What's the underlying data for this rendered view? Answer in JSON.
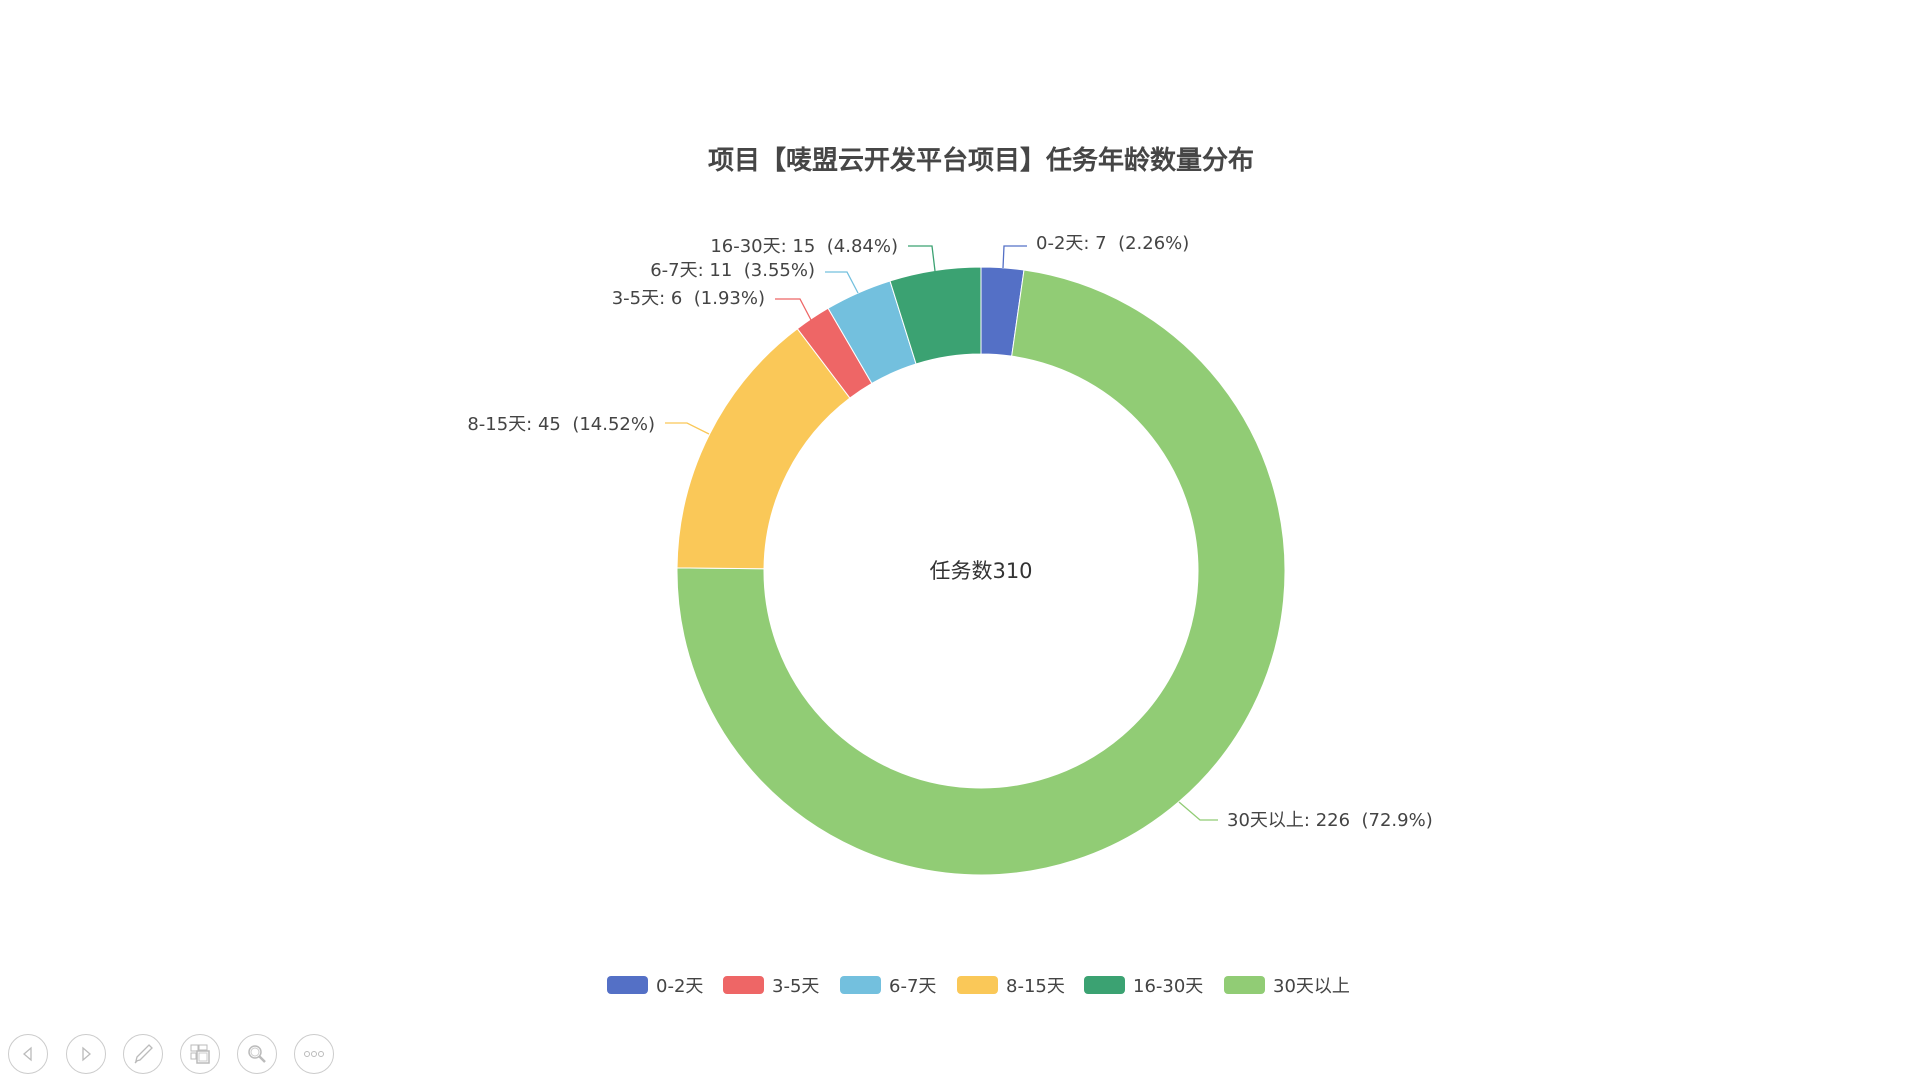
{
  "chart_data": {
    "type": "pie",
    "variant": "donut",
    "title": "项目【唛盟云开发平台项目】任务年龄数量分布",
    "center_label": "任务数310",
    "slices": [
      {
        "name": "0-2天",
        "value": 7,
        "percent": "2.26%",
        "color": "#5470c6",
        "label": "0-2天: 7  (2.26%)"
      },
      {
        "name": "30天以上",
        "value": 226,
        "percent": "72.9%",
        "color": "#91cc75",
        "label": "30天以上: 226  (72.9%)"
      },
      {
        "name": "8-15天",
        "value": 45,
        "percent": "14.52%",
        "color": "#fac858",
        "label": "8-15天: 45  (14.52%)"
      },
      {
        "name": "3-5天",
        "value": 6,
        "percent": "1.93%",
        "color": "#ee6666",
        "label": "3-5天: 6  (1.93%)"
      },
      {
        "name": "6-7天",
        "value": 11,
        "percent": "3.55%",
        "color": "#73c0de",
        "label": "6-7天: 11  (3.55%)"
      },
      {
        "name": "16-30天",
        "value": 15,
        "percent": "4.84%",
        "color": "#3ba272",
        "label": "16-30天: 15  (4.84%)"
      }
    ],
    "legend": {
      "position": "bottom",
      "items": [
        {
          "name": "0-2天",
          "color": "#5470c6"
        },
        {
          "name": "3-5天",
          "color": "#ee6666"
        },
        {
          "name": "6-7天",
          "color": "#73c0de"
        },
        {
          "name": "8-15天",
          "color": "#fac858"
        },
        {
          "name": "16-30天",
          "color": "#3ba272"
        },
        {
          "name": "30天以上",
          "color": "#91cc75"
        }
      ]
    }
  },
  "toolbar": {
    "buttons": [
      {
        "icon": "previous-icon"
      },
      {
        "icon": "next-icon"
      },
      {
        "icon": "pen-icon"
      },
      {
        "icon": "slides-grid-icon"
      },
      {
        "icon": "zoom-icon"
      },
      {
        "icon": "more-icon"
      }
    ]
  }
}
